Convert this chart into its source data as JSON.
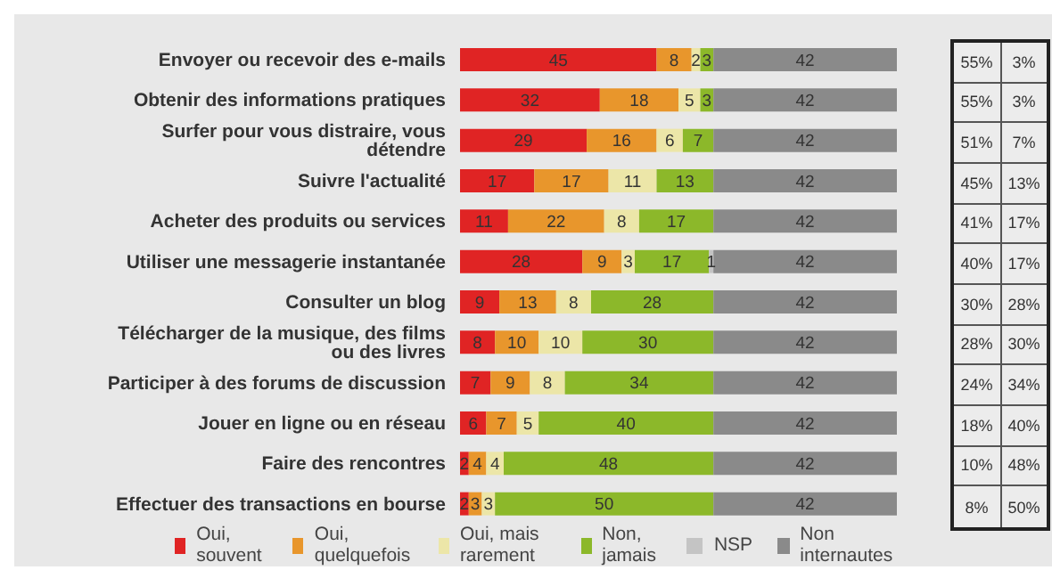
{
  "chart_data": {
    "type": "bar",
    "orientation": "horizontal",
    "stacked": true,
    "data_labels": true,
    "legend": "bottom",
    "categories": [
      "Envoyer ou recevoir des e-mails",
      "Obtenir des informations pratiques",
      "Surfer pour vous distraire, vous détendre",
      "Suivre l'actualité",
      "Acheter des produits ou services",
      "Utiliser une messagerie instantanée",
      "Consulter un blog",
      "Télécharger de la musique, des films ou des livres",
      "Participer à des forums de discussion",
      "Jouer en ligne ou en réseau",
      "Faire des rencontres",
      "Effectuer des transactions en bourse"
    ],
    "series": [
      {
        "name": "Oui, souvent",
        "color": "#e02424",
        "values": [
          45,
          32,
          29,
          17,
          11,
          28,
          9,
          8,
          7,
          6,
          2,
          2
        ]
      },
      {
        "name": "Oui, quelquefois",
        "color": "#e8962c",
        "values": [
          8,
          18,
          16,
          17,
          22,
          9,
          13,
          10,
          9,
          7,
          4,
          3
        ]
      },
      {
        "name": "Oui, mais rarement",
        "color": "#ece6a8",
        "values": [
          2,
          5,
          6,
          11,
          8,
          3,
          8,
          10,
          8,
          5,
          4,
          3
        ]
      },
      {
        "name": "Non, jamais",
        "color": "#8cb82a",
        "values": [
          3,
          3,
          7,
          13,
          17,
          17,
          28,
          30,
          34,
          40,
          48,
          50
        ]
      },
      {
        "name": "NSP",
        "color": "#c4c4c4",
        "values": [
          null,
          null,
          null,
          null,
          null,
          1,
          null,
          null,
          null,
          null,
          null,
          null
        ]
      },
      {
        "name": "Non internautes",
        "color": "#8a8a8a",
        "values": [
          42,
          42,
          42,
          42,
          42,
          42,
          42,
          42,
          42,
          42,
          42,
          42
        ]
      }
    ],
    "annotations": [
      "55%",
      "3%",
      "55%",
      "3%",
      "51%",
      "7%",
      "45%",
      "13%",
      "41%",
      "17%",
      "40%",
      "17%",
      "30%",
      "28%",
      "28%",
      "30%",
      "24%",
      "34%",
      "18%",
      "40%",
      "10%",
      "48%",
      "8%",
      "50%"
    ]
  }
}
